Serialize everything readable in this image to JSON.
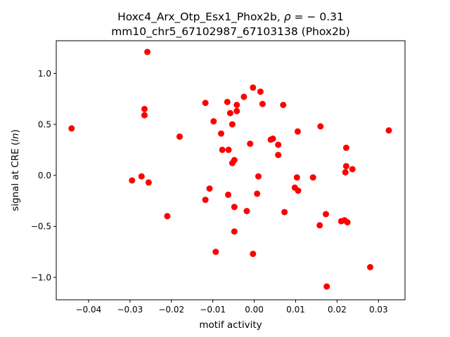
{
  "chart_data": {
    "type": "scatter",
    "title_line1": "Hoxc4_Arx_Otp_Esx1_Phox2b, ",
    "title_rho": "ρ",
    "title_rho_value": " = − 0.31",
    "title_line2": "mm10_chr5_67102987_67103138 (Phox2b)",
    "xlabel": "motif activity",
    "ylabel_prefix": "signal at CRE (",
    "ylabel_italic": "ln",
    "ylabel_suffix": ")",
    "xlim": [
      -0.0478,
      0.0364
    ],
    "ylim": [
      -1.22,
      1.32
    ],
    "xticks": [
      -0.04,
      -0.03,
      -0.02,
      -0.01,
      0.0,
      0.01,
      0.02,
      0.03
    ],
    "xtick_labels": [
      "−0.04",
      "−0.03",
      "−0.02",
      "−0.01",
      "0.00",
      "0.01",
      "0.02",
      "0.03"
    ],
    "yticks": [
      -1.0,
      -0.5,
      0.0,
      0.5,
      1.0
    ],
    "ytick_labels": [
      "−1.0",
      "−0.5",
      "0.0",
      "0.5",
      "1.0"
    ],
    "grid": false,
    "point_color": "#ff0000",
    "points": [
      [
        -0.0441,
        0.46
      ],
      [
        -0.0258,
        1.21
      ],
      [
        -0.0265,
        0.65
      ],
      [
        -0.0265,
        0.59
      ],
      [
        -0.0295,
        -0.05
      ],
      [
        -0.0272,
        -0.01
      ],
      [
        -0.0255,
        -0.07
      ],
      [
        -0.021,
        -0.4
      ],
      [
        -0.018,
        0.38
      ],
      [
        -0.0118,
        0.71
      ],
      [
        -0.0118,
        -0.24
      ],
      [
        -0.0108,
        -0.13
      ],
      [
        -0.0098,
        0.53
      ],
      [
        -0.0093,
        -0.75
      ],
      [
        -0.008,
        0.41
      ],
      [
        -0.0077,
        0.25
      ],
      [
        -0.0065,
        0.72
      ],
      [
        -0.0062,
        0.25
      ],
      [
        -0.0063,
        -0.19
      ],
      [
        -0.0058,
        0.61
      ],
      [
        -0.0053,
        0.12
      ],
      [
        -0.0053,
        0.5
      ],
      [
        -0.0048,
        0.15
      ],
      [
        -0.0048,
        -0.31
      ],
      [
        -0.0048,
        -0.55
      ],
      [
        -0.0042,
        0.63
      ],
      [
        -0.0042,
        0.69
      ],
      [
        -0.0025,
        0.77
      ],
      [
        -0.0018,
        -0.35
      ],
      [
        -0.001,
        0.31
      ],
      [
        -0.0003,
        0.86
      ],
      [
        -0.0003,
        -0.77
      ],
      [
        0.0007,
        -0.18
      ],
      [
        0.001,
        -0.01
      ],
      [
        0.0015,
        0.82
      ],
      [
        0.002,
        0.7
      ],
      [
        0.004,
        0.35
      ],
      [
        0.0045,
        0.36
      ],
      [
        0.0058,
        0.3
      ],
      [
        0.0058,
        0.2
      ],
      [
        0.007,
        0.69
      ],
      [
        0.0073,
        -0.36
      ],
      [
        0.0098,
        -0.12
      ],
      [
        0.0103,
        -0.02
      ],
      [
        0.0105,
        0.43
      ],
      [
        0.0106,
        -0.15
      ],
      [
        0.0142,
        -0.02
      ],
      [
        0.0158,
        -0.49
      ],
      [
        0.016,
        0.48
      ],
      [
        0.0173,
        -0.38
      ],
      [
        0.0175,
        -1.09
      ],
      [
        0.021,
        -0.45
      ],
      [
        0.0218,
        -0.44
      ],
      [
        0.022,
        0.03
      ],
      [
        0.0222,
        0.27
      ],
      [
        0.0222,
        0.09
      ],
      [
        0.0225,
        -0.46
      ],
      [
        0.0237,
        0.06
      ],
      [
        0.028,
        -0.9
      ],
      [
        0.0325,
        0.44
      ]
    ]
  }
}
